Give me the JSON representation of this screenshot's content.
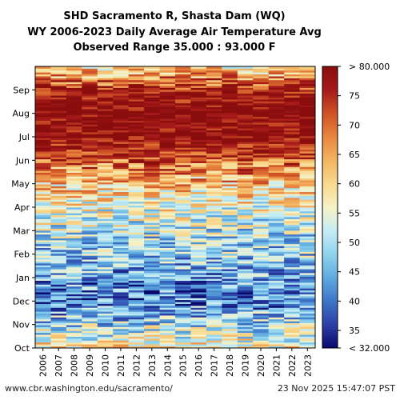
{
  "chart_data": {
    "type": "heatmap",
    "title": [
      "SHD Sacramento R, Shasta Dam (WQ)",
      "WY 2006-2023 Daily Average Air Temperature Avg",
      "Observed Range 35.000 : 93.000 F"
    ],
    "x": [
      "2006",
      "2007",
      "2008",
      "2009",
      "2010",
      "2011",
      "2012",
      "2013",
      "2014",
      "2015",
      "2016",
      "2017",
      "2018",
      "2019",
      "2020",
      "2021",
      "2022",
      "2023"
    ],
    "y_ticks": [
      "Oct",
      "Nov",
      "Dec",
      "Jan",
      "Feb",
      "Mar",
      "Apr",
      "May",
      "Jun",
      "Jul",
      "Aug",
      "Sep"
    ],
    "colorbar": {
      "min": 32,
      "max": 80,
      "ticks": [
        35,
        40,
        45,
        50,
        55,
        60,
        65,
        70,
        75
      ],
      "min_label": "< 32.000",
      "max_label": "> 80.000",
      "colors": [
        "#08086b",
        "#2c3fa6",
        "#3d75c7",
        "#5fa9e0",
        "#8fd3ee",
        "#c6ecf5",
        "#f6f2c6",
        "#f8d98e",
        "#f4b562",
        "#e88740",
        "#cf5326",
        "#a61a1a",
        "#8a0d0d"
      ]
    },
    "monthly_mean": [
      58,
      49,
      41,
      44,
      48,
      51,
      56,
      62,
      72,
      79,
      80,
      76
    ]
  },
  "footer": {
    "left": "www.cbr.washington.edu/sacramento/",
    "right": "23 Nov 2025 15:47:07 PST"
  }
}
